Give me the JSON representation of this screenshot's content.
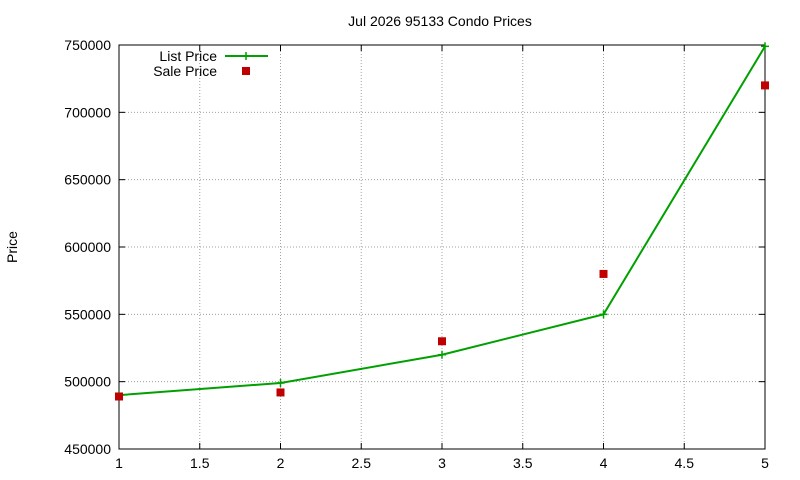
{
  "chart_data": {
    "type": "line",
    "title": "Jul 2026 95133 Condo Prices",
    "xlabel": "",
    "ylabel": "Price",
    "xlim": [
      1,
      5
    ],
    "ylim": [
      450000,
      750000
    ],
    "x_ticks": [
      "1",
      "1.5",
      "2",
      "2.5",
      "3",
      "3.5",
      "4",
      "4.5",
      "5"
    ],
    "y_ticks": [
      "450000",
      "500000",
      "550000",
      "600000",
      "650000",
      "700000",
      "750000"
    ],
    "grid": true,
    "legend_position": "top-left",
    "series": [
      {
        "name": "List Price",
        "style": "linespoints",
        "color": "#00a000",
        "x": [
          1,
          2,
          3,
          4,
          5
        ],
        "values": [
          490000,
          499000,
          520000,
          550000,
          749000
        ]
      },
      {
        "name": "Sale Price",
        "style": "points",
        "color": "#c00000",
        "x": [
          1,
          2,
          3,
          4,
          5
        ],
        "values": [
          489000,
          492000,
          530000,
          580000,
          720000
        ]
      }
    ]
  }
}
